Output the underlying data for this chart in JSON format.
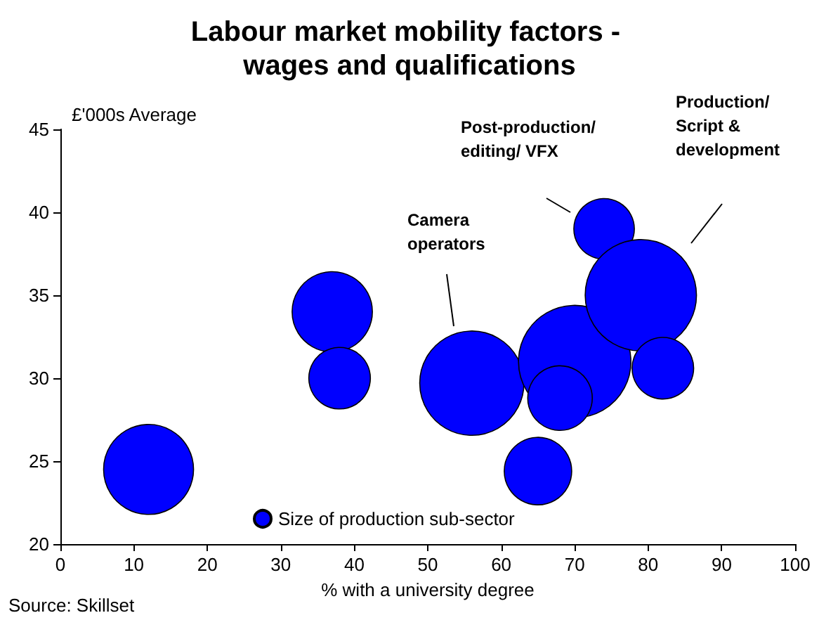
{
  "chart_data": {
    "type": "bubble",
    "title": "Labour market mobility factors - wages and qualifications",
    "xlabel": "% with a university degree",
    "ylabel": "£'000s Average",
    "xlim": [
      0,
      100
    ],
    "xticks": [
      0,
      10,
      20,
      30,
      40,
      50,
      60,
      70,
      80,
      90,
      100
    ],
    "ylim": [
      20,
      45
    ],
    "yticks": [
      20,
      25,
      30,
      35,
      40,
      45
    ],
    "series": [
      {
        "name": "Size of production sub-sector",
        "color": "#0000ff",
        "x": [
          12,
          37,
          38,
          56,
          65,
          70,
          68,
          74,
          79,
          82
        ],
        "values": [
          24.5,
          34,
          30,
          29.7,
          24.4,
          31,
          28.8,
          39,
          35,
          30.6
        ],
        "sizes": [
          0.64,
          0.51,
          0.3,
          0.86,
          0.36,
          1,
          0.33,
          0.29,
          0.98,
          0.3
        ]
      }
    ],
    "legend": "bottom",
    "grid": false,
    "annotations": [
      "Camera operators",
      "Post-production/ editing/ VFX",
      "Production/ Script & development",
      "Source: Skillset"
    ]
  }
}
